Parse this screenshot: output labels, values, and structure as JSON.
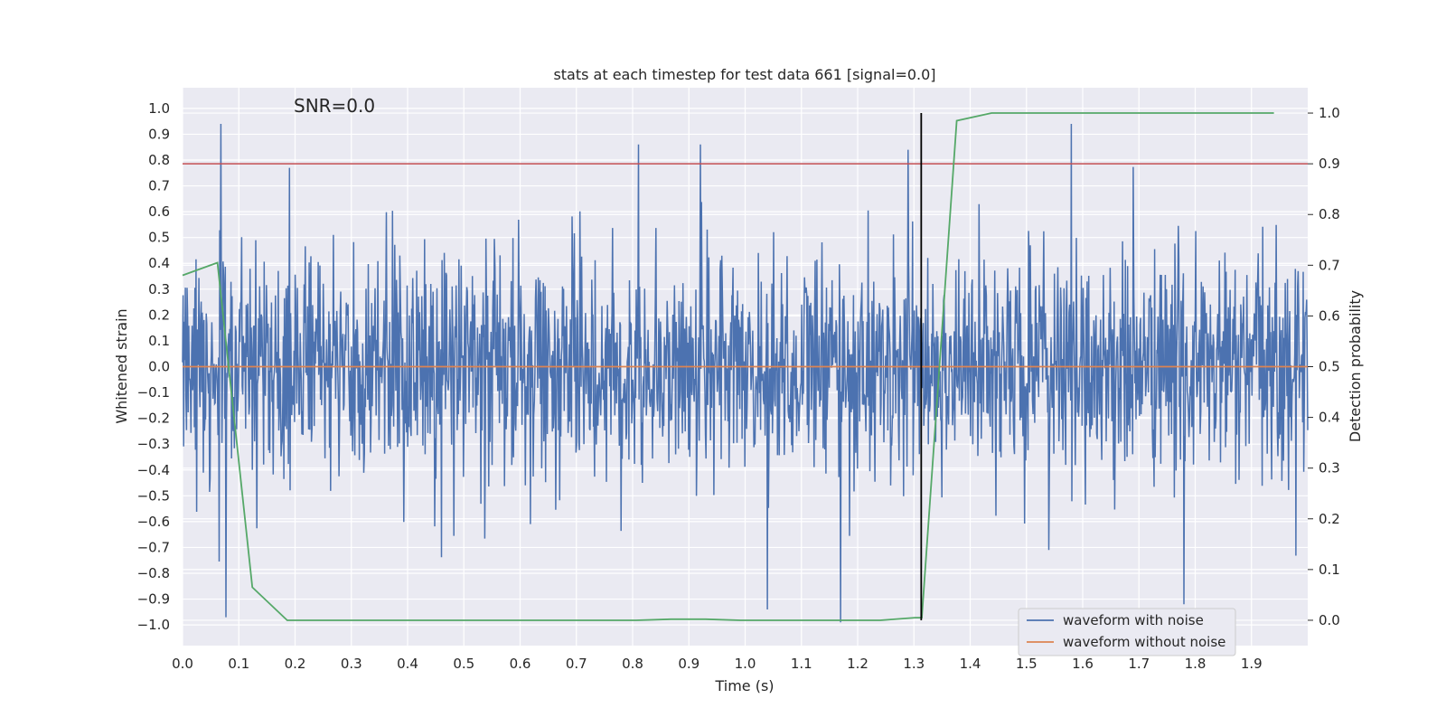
{
  "chart_data": {
    "type": "line",
    "title": "stats at each timestep for test data 661 [signal=0.0]",
    "annotation": "SNR=0.0",
    "xlabel": "Time (s)",
    "ylabel": "Whitened strain",
    "y2label": "Detection probability",
    "xlim": [
      0.0,
      2.0
    ],
    "ylim": [
      -1.08,
      1.08
    ],
    "y2lim": [
      -0.05,
      1.05
    ],
    "x_ticks": [
      "0.0",
      "0.1",
      "0.2",
      "0.3",
      "0.4",
      "0.5",
      "0.6",
      "0.7",
      "0.8",
      "0.9",
      "1.0",
      "1.1",
      "1.2",
      "1.3",
      "1.4",
      "1.5",
      "1.6",
      "1.7",
      "1.8",
      "1.9"
    ],
    "y_ticks": [
      "1.0",
      "0.9",
      "0.8",
      "0.7",
      "0.6",
      "0.5",
      "0.4",
      "0.3",
      "0.2",
      "0.1",
      "0.0",
      "-0.1",
      "-0.2",
      "-0.3",
      "-0.4",
      "-0.5",
      "-0.6",
      "-0.7",
      "-0.8",
      "-0.9",
      "-1.0"
    ],
    "y2_ticks": [
      "1.0",
      "0.9",
      "0.8",
      "0.7",
      "0.6",
      "0.5",
      "0.4",
      "0.3",
      "0.2",
      "0.1",
      "0.0"
    ],
    "threshold_line": {
      "axis": "y2",
      "value": 0.9,
      "color": "#c44e52"
    },
    "detection_time_line": {
      "x": 1.313,
      "y2_range": [
        0.0,
        1.0
      ],
      "color": "#000000"
    },
    "series": [
      {
        "name": "waveform with noise",
        "axis": "y",
        "color": "#4c72b0",
        "description": "high-frequency whitened noise, approximate envelope",
        "x_range": [
          0.0,
          2.0
        ],
        "peak_points": [
          {
            "x": 0.068,
            "y": 0.94
          },
          {
            "x": 0.077,
            "y": -0.97
          },
          {
            "x": 0.19,
            "y": 0.77
          },
          {
            "x": 0.81,
            "y": 0.86
          },
          {
            "x": 0.92,
            "y": 0.86
          },
          {
            "x": 1.04,
            "y": -0.94
          },
          {
            "x": 1.17,
            "y": -0.99
          },
          {
            "x": 1.29,
            "y": 0.84
          },
          {
            "x": 1.58,
            "y": 0.94
          },
          {
            "x": 1.78,
            "y": -0.92
          }
        ]
      },
      {
        "name": "waveform without noise",
        "axis": "y",
        "color": "#dd8452",
        "x": [
          0.0,
          2.0
        ],
        "values": [
          0.0,
          0.0
        ]
      },
      {
        "name": "detection probability",
        "axis": "y2",
        "color": "#55a868",
        "x": [
          0.0,
          0.062,
          0.124,
          0.186,
          0.248,
          0.31,
          0.372,
          0.434,
          0.496,
          0.558,
          0.62,
          0.682,
          0.744,
          0.806,
          0.868,
          0.93,
          0.992,
          1.054,
          1.116,
          1.178,
          1.24,
          1.302,
          1.314,
          1.376,
          1.438,
          1.5,
          1.562,
          1.624,
          1.686,
          1.748,
          1.81,
          1.872,
          1.94
        ],
        "values": [
          0.68,
          0.705,
          0.065,
          0.0,
          0.0,
          0.0,
          0.0,
          0.0,
          0.0,
          0.0,
          0.0,
          0.0,
          0.0,
          0.0,
          0.002,
          0.002,
          0.0,
          0.0,
          0.0,
          0.0,
          0.0,
          0.005,
          0.005,
          0.985,
          1.0,
          1.0,
          1.0,
          1.0,
          1.0,
          1.0,
          1.0,
          1.0,
          1.0
        ]
      }
    ],
    "legend": {
      "location": "lower-right",
      "entries": [
        {
          "label": "waveform with noise",
          "color": "#4c72b0"
        },
        {
          "label": "waveform without noise",
          "color": "#dd8452"
        }
      ]
    }
  }
}
